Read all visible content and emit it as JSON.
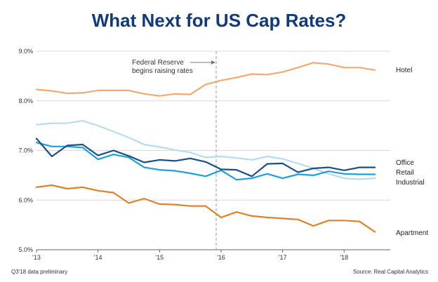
{
  "chart_data": {
    "type": "line",
    "title": "What Next for US Cap Rates?",
    "xlabel": "",
    "ylabel": "",
    "x_range": [
      2013.0,
      2018.75
    ],
    "ylim": [
      5.0,
      9.0
    ],
    "y_ticks": [
      5.0,
      6.0,
      7.0,
      8.0,
      9.0
    ],
    "y_tick_labels": [
      "5.0%",
      "6.0%",
      "7.0%",
      "8.0%",
      "9.0%"
    ],
    "x_ticks": [
      2013,
      2014,
      2015,
      2016,
      2017,
      2018
    ],
    "x_tick_labels": [
      "'13",
      "'14",
      "'15",
      "'16",
      "'17",
      "'18"
    ],
    "grid": "horizontal",
    "x": [
      2013.0,
      2013.25,
      2013.5,
      2013.75,
      2014.0,
      2014.25,
      2014.5,
      2014.75,
      2015.0,
      2015.25,
      2015.5,
      2015.75,
      2016.0,
      2016.25,
      2016.5,
      2016.75,
      2017.0,
      2017.25,
      2017.5,
      2017.75,
      2018.0,
      2018.25,
      2018.5
    ],
    "series": [
      {
        "name": "Hotel",
        "color": "#f4a971",
        "values": [
          8.23,
          8.2,
          8.15,
          8.16,
          8.21,
          8.21,
          8.21,
          8.14,
          8.1,
          8.14,
          8.13,
          8.33,
          8.41,
          8.47,
          8.54,
          8.53,
          8.58,
          8.67,
          8.77,
          8.74,
          8.67,
          8.67,
          8.62
        ]
      },
      {
        "name": "Office",
        "color": "#1b4f8a",
        "values": [
          7.24,
          6.88,
          7.1,
          7.12,
          6.9,
          7.0,
          6.89,
          6.76,
          6.81,
          6.79,
          6.84,
          6.77,
          6.62,
          6.61,
          6.48,
          6.73,
          6.74,
          6.56,
          6.64,
          6.66,
          6.6,
          6.66,
          6.66
        ]
      },
      {
        "name": "Retail",
        "color": "#1ea0d9",
        "values": [
          7.16,
          7.08,
          7.08,
          7.06,
          6.82,
          6.92,
          6.86,
          6.66,
          6.61,
          6.59,
          6.54,
          6.48,
          6.6,
          6.41,
          6.44,
          6.53,
          6.44,
          6.52,
          6.5,
          6.58,
          6.53,
          6.52,
          6.52
        ]
      },
      {
        "name": "Industrial",
        "color": "#b6dcef",
        "values": [
          7.52,
          7.55,
          7.55,
          7.6,
          7.5,
          7.38,
          7.26,
          7.12,
          7.07,
          7.01,
          6.96,
          6.86,
          6.88,
          6.85,
          6.81,
          6.88,
          6.83,
          6.74,
          6.64,
          6.53,
          6.44,
          6.42,
          6.44
        ]
      },
      {
        "name": "Apartment",
        "color": "#e2802a",
        "values": [
          6.26,
          6.3,
          6.23,
          6.26,
          6.19,
          6.15,
          5.94,
          6.03,
          5.92,
          5.91,
          5.88,
          5.88,
          5.65,
          5.76,
          5.68,
          5.65,
          5.63,
          5.61,
          5.48,
          5.59,
          5.59,
          5.57,
          5.36
        ]
      }
    ],
    "annotation": {
      "line1": "Federal Reserve",
      "line2": "begins raising rates",
      "x": 2015.92
    },
    "footnote_left": "Q3'18 data preliminary",
    "footnote_right": "Source: Real Capital Analytics"
  }
}
